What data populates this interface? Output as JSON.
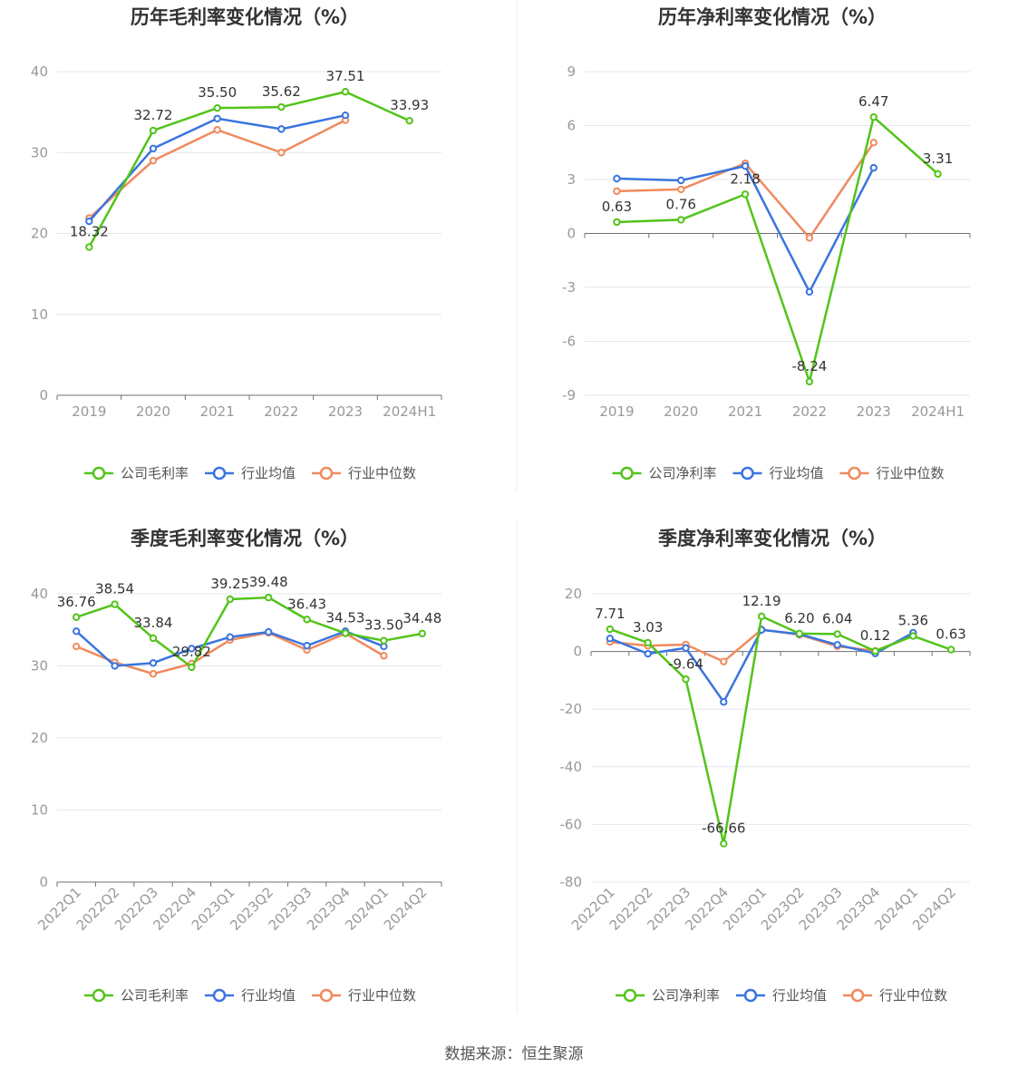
{
  "legend_names": {
    "company_gross": "公司毛利率",
    "company_net": "公司净利率",
    "avg": "行业均值",
    "median": "行业中位数"
  },
  "colors": {
    "company": "#52c41a",
    "avg": "#3a74e0",
    "median": "#f08a5d",
    "grid": "#e4e6f0",
    "axis": "#6e7079",
    "text": "#333333",
    "tick": "#999999"
  },
  "footer": "数据来源：恒生聚源",
  "chart_data": [
    {
      "type": "line",
      "title": "历年毛利率变化情况（%）",
      "categories": [
        "2019",
        "2020",
        "2021",
        "2022",
        "2023",
        "2024H1"
      ],
      "ylim": [
        0,
        40
      ],
      "yticks": [
        0,
        10,
        20,
        30,
        40
      ],
      "series": [
        {
          "name": "公司毛利率",
          "values": [
            18.32,
            32.72,
            35.5,
            35.62,
            37.51,
            33.93
          ],
          "labels": [
            "18.32",
            "32.72",
            "35.50",
            "35.62",
            "37.51",
            "33.93"
          ]
        },
        {
          "name": "行业均值",
          "values": [
            21.5,
            30.5,
            34.2,
            32.9,
            34.6,
            null
          ]
        },
        {
          "name": "行业中位数",
          "values": [
            21.9,
            29.0,
            32.8,
            30.0,
            34.0,
            null
          ]
        }
      ]
    },
    {
      "type": "line",
      "title": "历年净利率变化情况（%）",
      "categories": [
        "2019",
        "2020",
        "2021",
        "2022",
        "2023",
        "2024H1"
      ],
      "ylim": [
        -9,
        9
      ],
      "yticks": [
        -9,
        -6,
        -3,
        0,
        3,
        6,
        9
      ],
      "series": [
        {
          "name": "公司净利率",
          "values": [
            0.63,
            0.76,
            2.18,
            -8.24,
            6.47,
            3.31
          ],
          "labels": [
            "0.63",
            "0.76",
            "2.18",
            "-8.24",
            "6.47",
            "3.31"
          ]
        },
        {
          "name": "行业均值",
          "values": [
            3.05,
            2.95,
            3.75,
            -3.25,
            3.65,
            null
          ]
        },
        {
          "name": "行业中位数",
          "values": [
            2.35,
            2.45,
            3.9,
            -0.25,
            5.05,
            null
          ]
        }
      ]
    },
    {
      "type": "line",
      "title": "季度毛利率变化情况（%）",
      "categories": [
        "2022Q1",
        "2022Q2",
        "2022Q3",
        "2022Q4",
        "2023Q1",
        "2023Q2",
        "2023Q3",
        "2023Q4",
        "2024Q1",
        "2024Q2"
      ],
      "ylim": [
        0,
        40
      ],
      "yticks": [
        0,
        10,
        20,
        30,
        40
      ],
      "series": [
        {
          "name": "公司毛利率",
          "values": [
            36.76,
            38.54,
            33.84,
            29.82,
            39.25,
            39.48,
            36.43,
            34.53,
            33.5,
            34.48
          ],
          "labels": [
            "36.76",
            "38.54",
            "33.84",
            "29.82",
            "39.25",
            "39.48",
            "36.43",
            "34.53",
            "33.50",
            "34.48"
          ]
        },
        {
          "name": "行业均值",
          "values": [
            34.8,
            30.0,
            30.4,
            32.4,
            34.0,
            34.7,
            32.8,
            34.8,
            32.7,
            null
          ]
        },
        {
          "name": "行业中位数",
          "values": [
            32.7,
            30.5,
            28.9,
            30.3,
            33.6,
            34.6,
            32.2,
            34.5,
            31.4,
            null
          ]
        }
      ]
    },
    {
      "type": "line",
      "title": "季度净利率变化情况（%）",
      "categories": [
        "2022Q1",
        "2022Q2",
        "2022Q3",
        "2022Q4",
        "2023Q1",
        "2023Q2",
        "2023Q3",
        "2023Q4",
        "2024Q1",
        "2024Q2"
      ],
      "ylim": [
        -80,
        20
      ],
      "yticks": [
        -80,
        -60,
        -40,
        -20,
        0,
        20
      ],
      "series": [
        {
          "name": "公司净利率",
          "values": [
            7.71,
            3.03,
            -9.64,
            -66.66,
            12.19,
            6.2,
            6.04,
            0.12,
            5.36,
            0.63
          ],
          "labels": [
            "7.71",
            "3.03",
            "-9.64",
            "-66.66",
            "12.19",
            "6.20",
            "6.04",
            "0.12",
            "5.36",
            "0.63"
          ]
        },
        {
          "name": "行业均值",
          "values": [
            4.5,
            -0.8,
            1.2,
            -17.5,
            7.5,
            6.0,
            2.3,
            -0.7,
            6.5,
            null
          ]
        },
        {
          "name": "行业中位数",
          "values": [
            3.3,
            2.0,
            2.4,
            -3.5,
            7.6,
            5.8,
            1.8,
            0.2,
            5.4,
            null
          ]
        }
      ]
    }
  ]
}
